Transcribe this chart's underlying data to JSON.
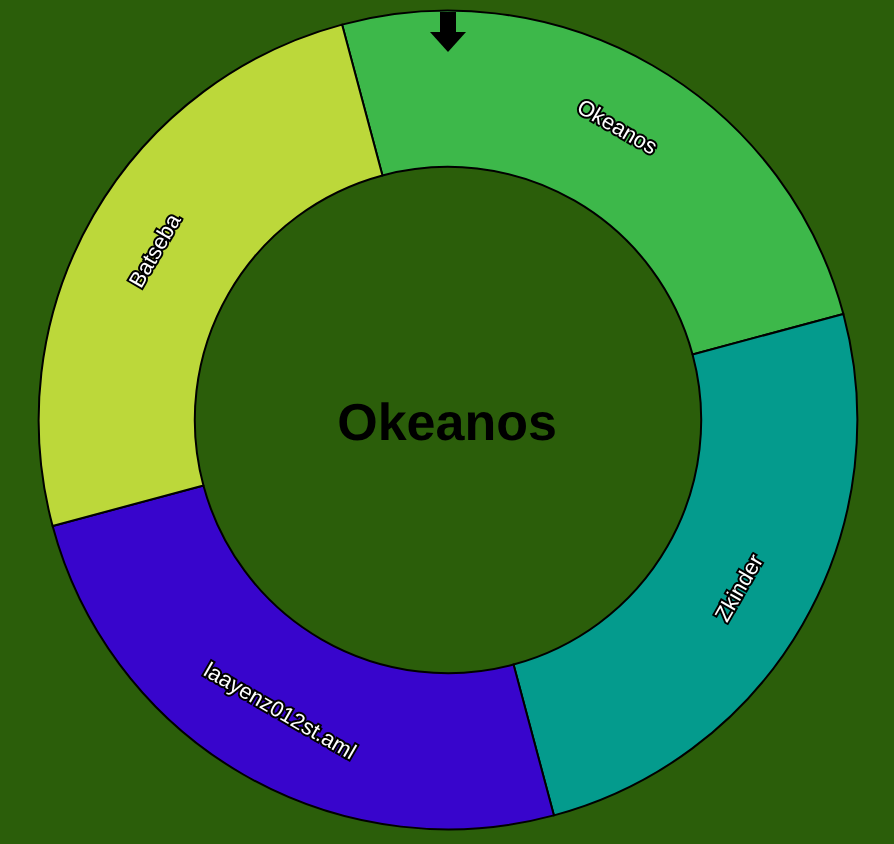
{
  "chart_data": {
    "type": "donut",
    "title": "Okeanos",
    "categories": [
      "Okeanos",
      "Zkinder",
      "laayenz012st.aml",
      "Batseba"
    ],
    "values": [
      25,
      25,
      25,
      25
    ],
    "colors": [
      "#3db84a",
      "#049b8d",
      "#3805cc",
      "#bcd83a"
    ]
  }
}
